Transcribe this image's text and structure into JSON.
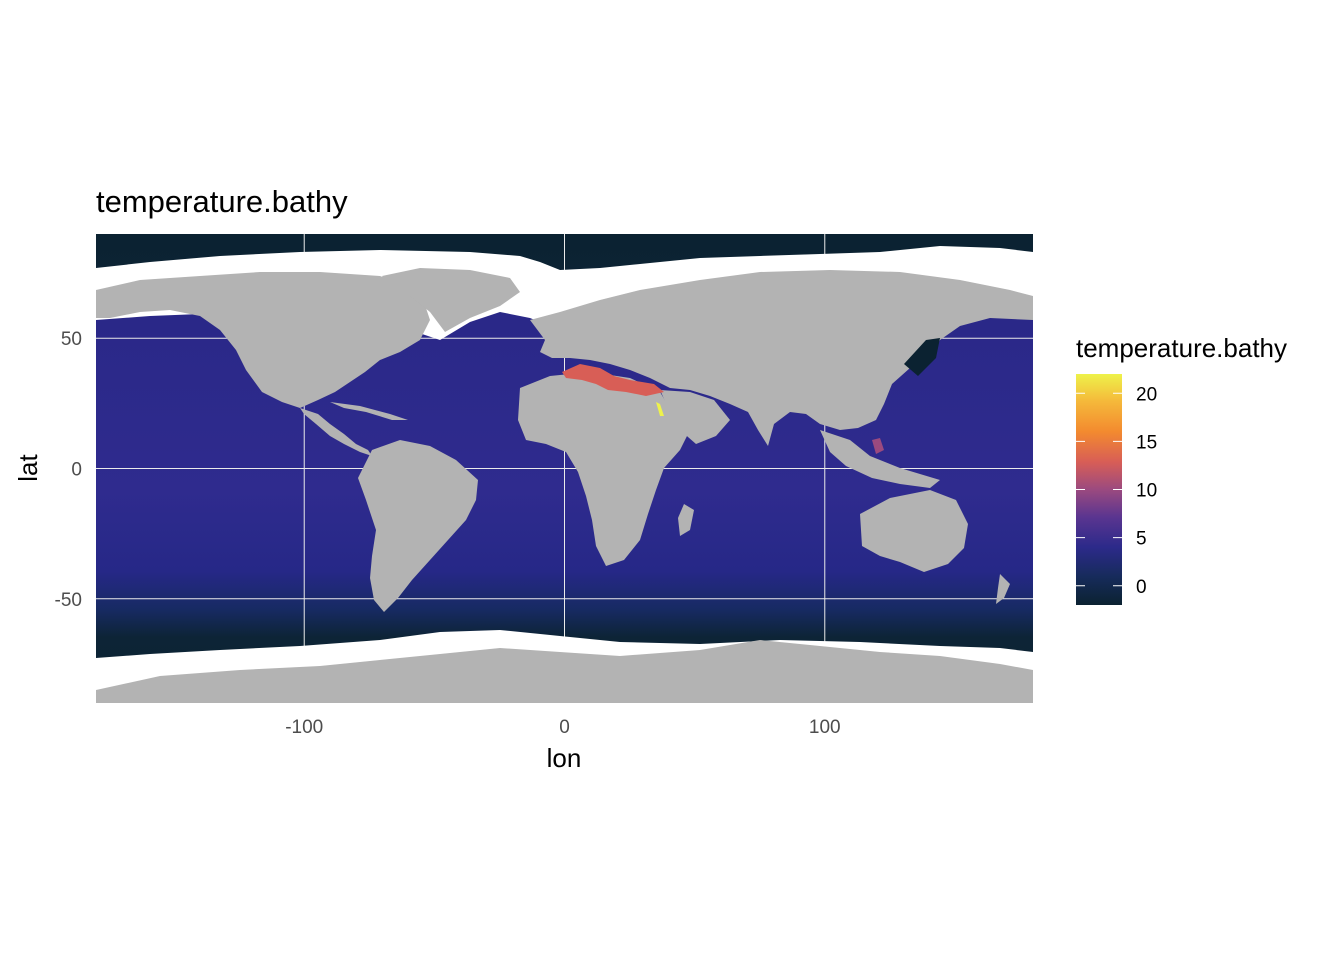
{
  "title": "temperature.bathy",
  "colors": {
    "land": "#b3b3b3",
    "sea_ice": "#ffffff",
    "gridline": "#ebebeb",
    "palette": [
      "#0b2231",
      "#162b5a",
      "#2c2a8a",
      "#5a3590",
      "#9b4a7f",
      "#d85e56",
      "#f38a2f",
      "#f5b83a",
      "#eef24a"
    ]
  },
  "chart_data": {
    "type": "heatmap",
    "title": "temperature.bathy",
    "xlabel": "lon",
    "ylabel": "lat",
    "xlim": [
      -180,
      180
    ],
    "ylim": [
      -90,
      90
    ],
    "x_ticks": [
      -100,
      0,
      100
    ],
    "y_ticks": [
      -50,
      0,
      50
    ],
    "x_tick_labels": [
      "-100",
      "0",
      "100"
    ],
    "y_tick_labels": [
      "-50",
      "0",
      "50"
    ],
    "grid": true,
    "fill_variable": "temperature.bathy",
    "fill_range": [
      -2,
      22
    ],
    "legend": {
      "title": "temperature.bathy",
      "position": "right",
      "breaks": [
        0,
        5,
        10,
        15,
        20
      ],
      "labels": [
        "0",
        "5",
        "10",
        "15",
        "20"
      ]
    },
    "regions": [
      {
        "name": "Southern Ocean band",
        "value": 0
      },
      {
        "name": "Arctic Ocean",
        "value": -1
      },
      {
        "name": "Sea of Japan",
        "value": -0.5
      },
      {
        "name": "Open ocean",
        "value": 2.5
      },
      {
        "name": "Mediterranean Sea",
        "value": 13.5
      },
      {
        "name": "Red Sea",
        "value": 21.5
      },
      {
        "name": "Sulu Sea",
        "value": 10
      }
    ]
  }
}
